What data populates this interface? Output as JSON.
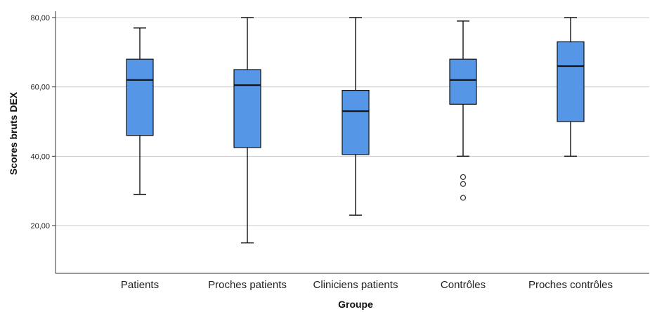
{
  "chart_data": {
    "type": "boxplot",
    "xlabel": "Groupe",
    "ylabel": "Scores bruts DEX",
    "ylim": [
      8,
      82
    ],
    "yticks": [
      20,
      40,
      60,
      80
    ],
    "ytick_labels": [
      "20,00",
      "40,00",
      "60,00",
      "80,00"
    ],
    "grid": true,
    "box_color": "#5596e6",
    "categories": [
      "Patients",
      "Proches patients",
      "Cliniciens patients",
      "Contrôles",
      "Proches contrôles"
    ],
    "boxes": [
      {
        "category": "Patients",
        "min": 29,
        "q1": 46,
        "median": 62,
        "q3": 68,
        "max": 77,
        "outliers": []
      },
      {
        "category": "Proches patients",
        "min": 15,
        "q1": 42.5,
        "median": 60.5,
        "q3": 65,
        "max": 80,
        "outliers": []
      },
      {
        "category": "Cliniciens patients",
        "min": 23,
        "q1": 40.5,
        "median": 53,
        "q3": 59,
        "max": 80,
        "outliers": []
      },
      {
        "category": "Contrôles",
        "min": 40,
        "q1": 55,
        "median": 62,
        "q3": 68,
        "max": 79,
        "outliers": [
          34,
          32,
          28
        ]
      },
      {
        "category": "Proches contrôles",
        "min": 40,
        "q1": 50,
        "median": 66,
        "q3": 73,
        "max": 80,
        "outliers": []
      }
    ]
  }
}
